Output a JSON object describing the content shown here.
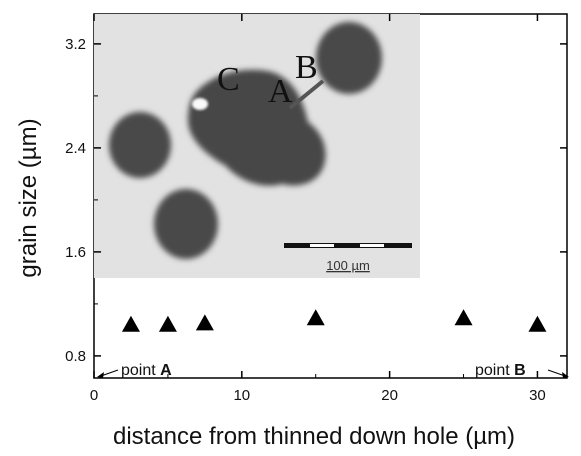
{
  "chart_data": {
    "type": "scatter",
    "xlabel": "distance from thinned down hole (µm)",
    "ylabel": "grain size (µm)",
    "xlim": [
      0,
      32
    ],
    "ylim": [
      0.63,
      3.43
    ],
    "x_ticks": [
      0,
      10,
      20,
      30
    ],
    "x_tick_labels": [
      "0",
      "10",
      "20",
      "30"
    ],
    "y_ticks": [
      0.8,
      1.6,
      2.4,
      3.2
    ],
    "y_tick_labels": [
      "0.8",
      "1.6",
      "2.4",
      "3.2"
    ],
    "marker": "filled-triangle",
    "marker_color": "#000000",
    "series": [
      {
        "points": [
          {
            "x": 2.5,
            "y": 1.04
          },
          {
            "x": 5.0,
            "y": 1.04
          },
          {
            "x": 7.5,
            "y": 1.05
          },
          {
            "x": 15.0,
            "y": 1.09
          },
          {
            "x": 25.0,
            "y": 1.09
          },
          {
            "x": 30.0,
            "y": 1.04
          }
        ]
      }
    ],
    "annotations": {
      "point_a": {
        "prefix": "point ",
        "bold": "A",
        "direction": "left"
      },
      "point_b": {
        "prefix": "point ",
        "bold": "B",
        "direction": "right"
      }
    },
    "inset": {
      "type": "micrograph",
      "labels": [
        "C",
        "A",
        "B"
      ],
      "scale_bar_label": "100 µm"
    }
  }
}
